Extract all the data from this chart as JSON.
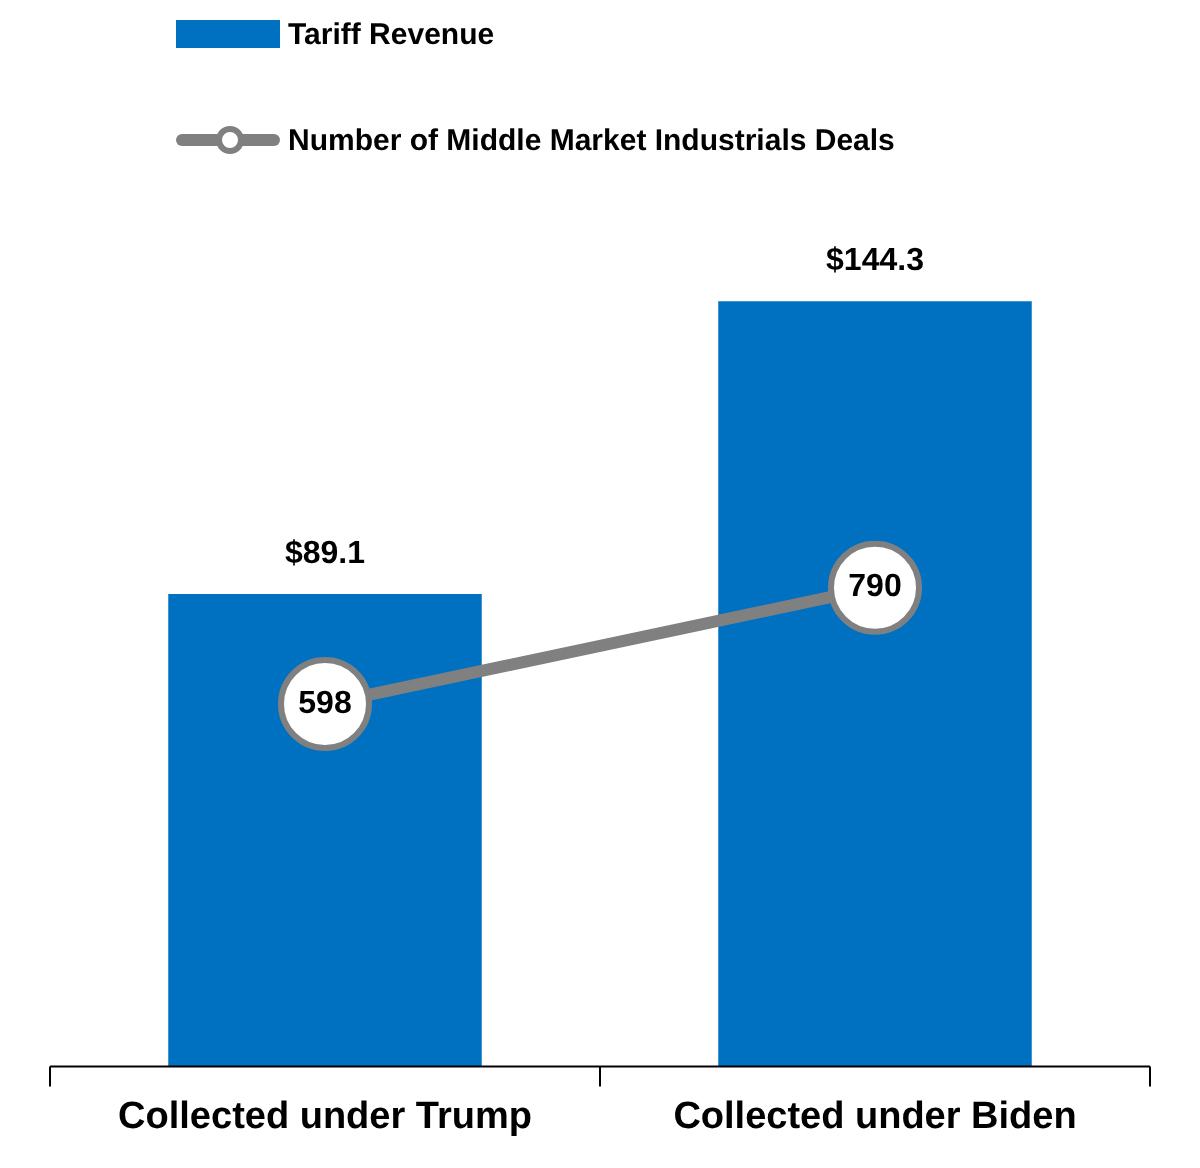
{
  "chart_data": {
    "type": "bar",
    "categories": [
      "Collected under Trump",
      "Collected under Biden"
    ],
    "series": [
      {
        "name": "Tariff Revenue",
        "color": "#0070c0",
        "values": [
          89.1,
          144.3
        ],
        "value_labels": [
          "$89.1",
          "$144.3"
        ]
      },
      {
        "name": "Number of Middle Market Industrials Deals",
        "type": "line",
        "axis": "y2",
        "color": "#808080",
        "values": [
          598,
          790
        ]
      }
    ],
    "marker": "circle",
    "tick_labels": "x",
    "data_labels": true,
    "legend": "top left",
    "grid": false
  }
}
